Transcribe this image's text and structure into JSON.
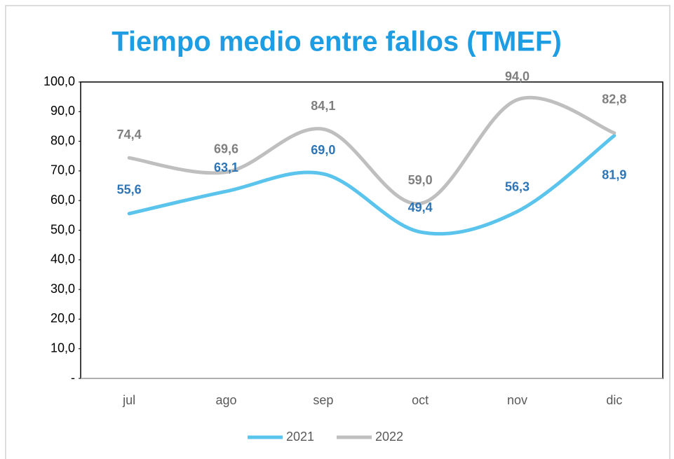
{
  "chart_data": {
    "type": "line",
    "title": "Tiempo medio entre fallos (TMEF)",
    "categories": [
      "jul",
      "ago",
      "sep",
      "oct",
      "nov",
      "dic"
    ],
    "series": [
      {
        "name": "2021",
        "color": "#5bc4ec",
        "label_color": "#2e75b6",
        "values": [
          55.6,
          63.1,
          69.0,
          49.4,
          56.3,
          81.9
        ],
        "value_labels": [
          "55,6",
          "63,1",
          "69,0",
          "49,4",
          "56,3",
          "81,9"
        ]
      },
      {
        "name": "2022",
        "color": "#bfbfbf",
        "label_color": "#7f7f7f",
        "values": [
          74.4,
          69.6,
          84.1,
          59.0,
          94.0,
          82.8
        ],
        "value_labels": [
          "74,4",
          "69,6",
          "84,1",
          "59,0",
          "94,0",
          "82,8"
        ]
      }
    ],
    "ylim": [
      0,
      100
    ],
    "yticks": [
      {
        "value": 0,
        "label": "-"
      },
      {
        "value": 10,
        "label": "10,0"
      },
      {
        "value": 20,
        "label": "20,0"
      },
      {
        "value": 30,
        "label": "30,0"
      },
      {
        "value": 40,
        "label": "40,0"
      },
      {
        "value": 50,
        "label": "50,0"
      },
      {
        "value": 60,
        "label": "60,0"
      },
      {
        "value": 70,
        "label": "70,0"
      },
      {
        "value": 80,
        "label": "80,0"
      },
      {
        "value": 90,
        "label": "90,0"
      },
      {
        "value": 100,
        "label": "100,0"
      }
    ],
    "smooth": true,
    "legend": "bottom"
  }
}
